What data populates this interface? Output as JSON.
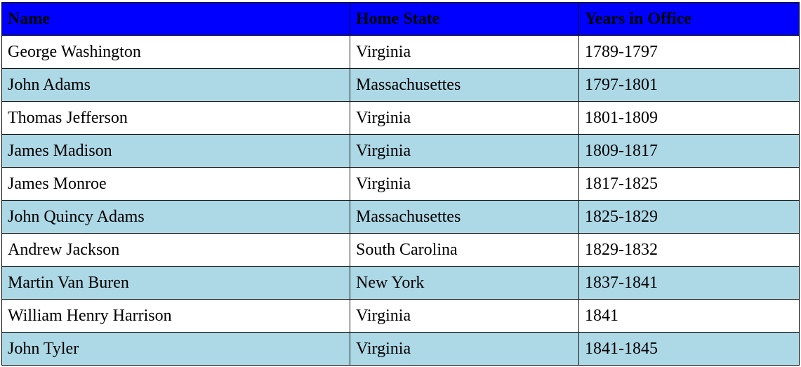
{
  "colors": {
    "header_bg": "#0000ff",
    "row_alt_bg": "#add8e6",
    "row_bg": "#ffffff",
    "border": "#111111"
  },
  "table": {
    "headers": [
      "Name",
      "Home State",
      "Years in Office"
    ],
    "rows": [
      [
        "George Washington",
        "Virginia",
        "1789-1797"
      ],
      [
        "John Adams",
        "Massachusettes",
        "1797-1801"
      ],
      [
        "Thomas Jefferson",
        "Virginia",
        "1801-1809"
      ],
      [
        "James Madison",
        "Virginia",
        "1809-1817"
      ],
      [
        "James Monroe",
        "Virginia",
        "1817-1825"
      ],
      [
        "John Quincy Adams",
        "Massachusettes",
        "1825-1829"
      ],
      [
        "Andrew Jackson",
        "South Carolina",
        "1829-1832"
      ],
      [
        "Martin Van Buren",
        "New York",
        "1837-1841"
      ],
      [
        "William Henry Harrison",
        "Virginia",
        "1841"
      ],
      [
        "John Tyler",
        "Virginia",
        "1841-1845"
      ]
    ]
  }
}
